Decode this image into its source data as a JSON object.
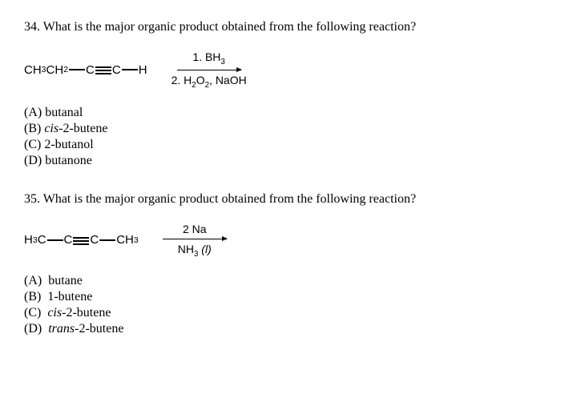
{
  "q34": {
    "number": "34.",
    "text": "What is the major organic product obtained from the following reaction?",
    "reactant": {
      "p1": "CH",
      "s1": "3",
      "p2": "CH",
      "s2": "2",
      "p3": "C",
      "p4": "C",
      "p5": "H"
    },
    "reagent_top": {
      "prefix": "1. BH",
      "sub": "3"
    },
    "reagent_bottom": {
      "prefix": "2. H",
      "s1": "2",
      "mid": "O",
      "s2": "2",
      "suffix": ", NaOH"
    },
    "options": {
      "a": {
        "label": "(A)",
        "text": "butanal"
      },
      "b": {
        "label": "(B)",
        "prefix": "cis",
        "text": "-2-butene"
      },
      "c": {
        "label": "(C)",
        "text": "2-butanol"
      },
      "d": {
        "label": "(D)",
        "text": "butanone"
      }
    }
  },
  "q35": {
    "number": "35.",
    "text": "What is the major organic product obtained from the following reaction?",
    "reactant": {
      "p1": "H",
      "s1": "3",
      "p2": "C",
      "p3": "C",
      "p4": "C",
      "p5": "CH",
      "s5": "3"
    },
    "reagent_top": "2 Na",
    "reagent_bottom": {
      "prefix": "NH",
      "sub": "3",
      "suffix": " (l)"
    },
    "options": {
      "a": {
        "label": "(A)",
        "text": "butane"
      },
      "b": {
        "label": "(B)",
        "text": "1-butene"
      },
      "c": {
        "label": "(C)",
        "prefix": "cis",
        "text": "-2-butene"
      },
      "d": {
        "label": "(D)",
        "prefix": "trans",
        "text": "-2-butene"
      }
    }
  }
}
